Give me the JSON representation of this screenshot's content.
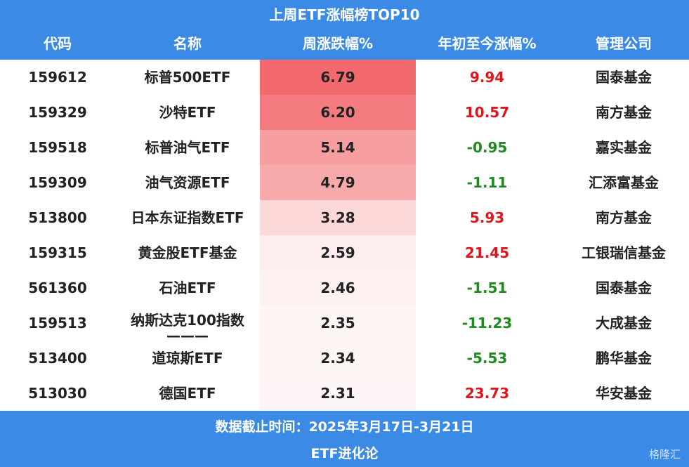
{
  "title": "上周ETF涨幅榜TOP10",
  "table": {
    "columns": [
      "代码",
      "名称",
      "周涨跌幅%",
      "年初至今涨幅%",
      "管理公司"
    ],
    "rows": [
      [
        "159612",
        "标普500ETF",
        6.79,
        9.94,
        "国泰基金"
      ],
      [
        "159329",
        "沙特ETF",
        6.2,
        10.57,
        "南方基金"
      ],
      [
        "159518",
        "标普油气ETF",
        5.14,
        -0.95,
        "嘉实基金"
      ],
      [
        "159309",
        "油气资源ETF",
        4.79,
        -1.11,
        "汇添富基金"
      ],
      [
        "513800",
        "日本东证指数ETF",
        3.28,
        5.93,
        "南方基金"
      ],
      [
        "159315",
        "黄金股ETF基金",
        2.59,
        21.45,
        "工银瑞信基金"
      ],
      [
        "561360",
        "石油ETF",
        2.46,
        -1.51,
        "国泰基金"
      ],
      [
        "159513",
        "纳斯达克100指数\n———",
        2.35,
        -11.23,
        "大成基金"
      ],
      [
        "513400",
        "道琼斯ETF",
        2.34,
        -5.53,
        "鹏华基金"
      ],
      [
        "513030",
        "德国ETF",
        2.31,
        23.73,
        "华安基金"
      ]
    ],
    "value_labels": [
      [
        "6.79",
        "9.94"
      ],
      [
        "6.20",
        "10.57"
      ],
      [
        "5.14",
        "-0.95"
      ],
      [
        "4.79",
        "-1.11"
      ],
      [
        "3.28",
        "5.93"
      ],
      [
        "2.59",
        "21.45"
      ],
      [
        "2.46",
        "-1.51"
      ],
      [
        "2.35",
        "-11.23"
      ],
      [
        "2.34",
        "-5.53"
      ],
      [
        "2.31",
        "23.73"
      ]
    ],
    "heat_color": "#f26a6e",
    "positive_color": "#e0151b",
    "negative_color": "#1f8a1f"
  },
  "footer": {
    "note": "数据截止时间：2025年3月17日-3月21日",
    "source": "ETF进化论",
    "watermark": "格隆汇"
  }
}
